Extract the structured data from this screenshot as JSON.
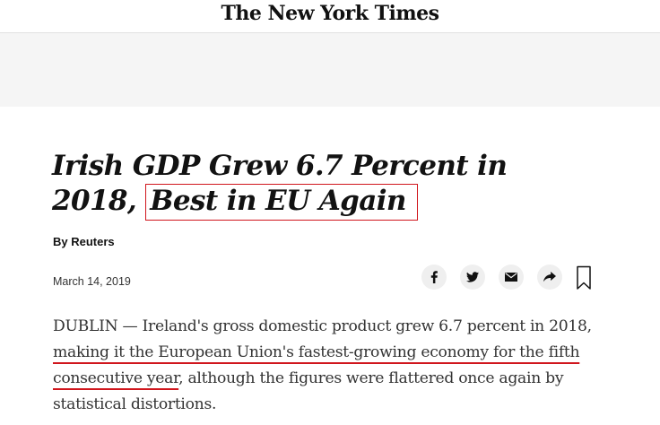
{
  "masthead": {
    "logo_text": "The New York Times"
  },
  "article": {
    "headline_part1": "Irish GDP Grew 6.7 Percent in 2018, ",
    "headline_highlight": "Best in EU Again",
    "byline": "By Reuters",
    "date": "March 14, 2019",
    "body_part1": "DUBLIN — Ireland's gross domestic product grew 6.7 percent in 2018, ",
    "body_underlined": "making it the European Union's fastest-growing economy for the fifth consecutive year",
    "body_part2": ", although the figures were flattered once again by statistical distortions."
  },
  "share_tools": [
    {
      "icon": "facebook-icon"
    },
    {
      "icon": "twitter-icon"
    },
    {
      "icon": "email-icon"
    },
    {
      "icon": "share-icon"
    },
    {
      "icon": "bookmark-icon"
    }
  ],
  "colors": {
    "annotation_red": "#d0161d",
    "share_button_bg": "#efefef",
    "ad_band_bg": "#f5f5f5"
  }
}
